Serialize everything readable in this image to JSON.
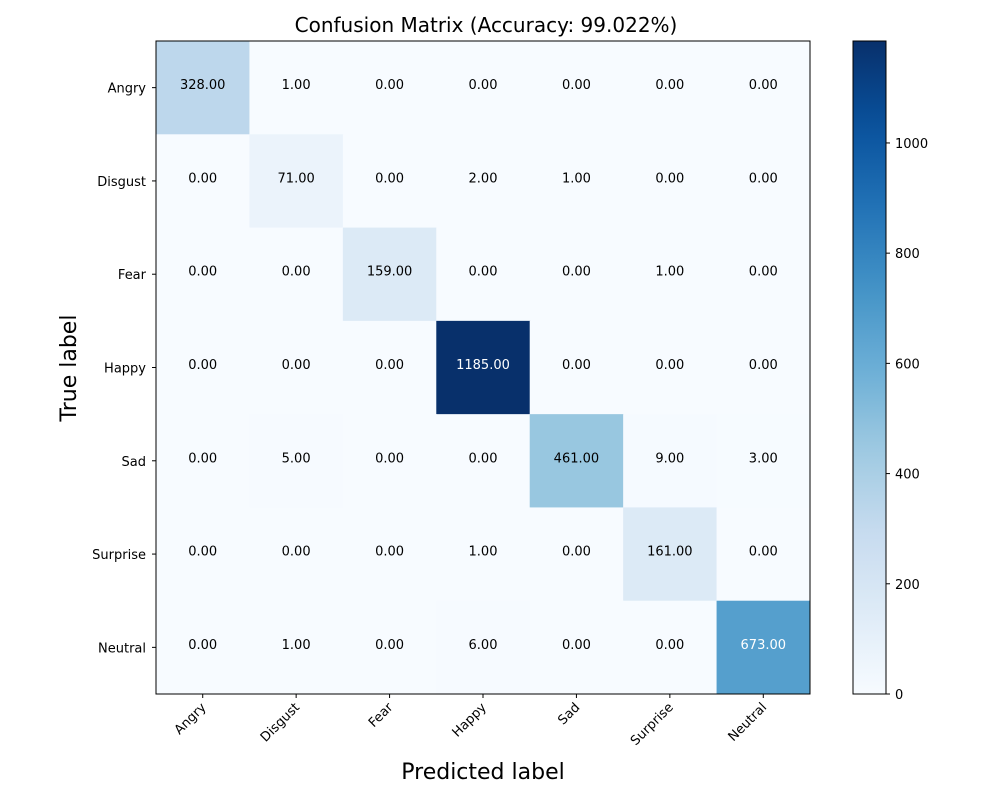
{
  "chart_data": {
    "type": "heatmap",
    "title": "Confusion Matrix (Accuracy: 99.022%)",
    "xlabel": "Predicted label",
    "ylabel": "True label",
    "x_categories": [
      "Angry",
      "Disgust",
      "Fear",
      "Happy",
      "Sad",
      "Surprise",
      "Neutral"
    ],
    "y_categories": [
      "Angry",
      "Disgust",
      "Fear",
      "Happy",
      "Sad",
      "Surprise",
      "Neutral"
    ],
    "values": [
      [
        328,
        1,
        0,
        0,
        0,
        0,
        0
      ],
      [
        0,
        71,
        0,
        2,
        1,
        0,
        0
      ],
      [
        0,
        0,
        159,
        0,
        0,
        1,
        0
      ],
      [
        0,
        0,
        0,
        1185,
        0,
        0,
        0
      ],
      [
        0,
        5,
        0,
        0,
        461,
        9,
        3
      ],
      [
        0,
        0,
        0,
        1,
        0,
        161,
        0
      ],
      [
        0,
        1,
        0,
        6,
        0,
        0,
        673
      ]
    ],
    "value_format_decimals": 2,
    "colormap": "Blues",
    "color_range": [
      0,
      1185
    ],
    "colorbar_ticks": [
      0,
      200,
      400,
      600,
      800,
      1000
    ],
    "text_color_dark": "#000000",
    "text_color_light": "#ffffff"
  }
}
